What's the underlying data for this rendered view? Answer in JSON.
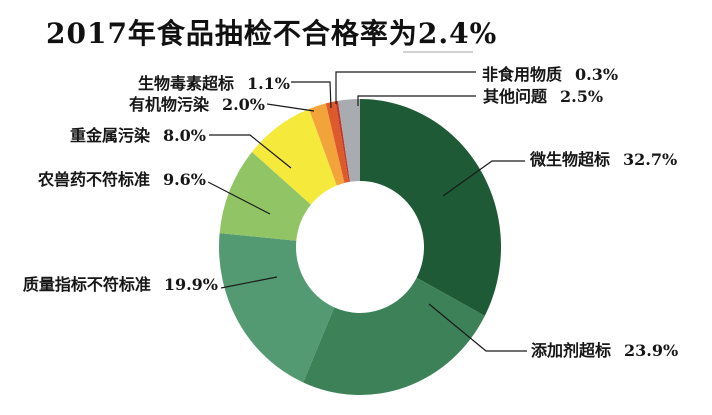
{
  "page": {
    "background": "#ffffff"
  },
  "title": "2017年食品抽检不合格率为2.4%",
  "chart_data": {
    "type": "pie",
    "subtype": "donut",
    "title": "2017年食品抽检不合格率为2.4%",
    "unit": "%",
    "total": 100,
    "start_angle_deg": 0,
    "direction": "clockwise",
    "legend_position": "none",
    "labels_as_callouts": true,
    "slices": [
      {
        "label": "微生物超标",
        "value": 32.7,
        "pct": "32.7%",
        "color": "#1d5a35",
        "side": "right"
      },
      {
        "label": "添加剂超标",
        "value": 23.9,
        "pct": "23.9%",
        "color": "#3d8158",
        "side": "right"
      },
      {
        "label": "质量指标不符标准",
        "value": 19.9,
        "pct": "19.9%",
        "color": "#539a73",
        "side": "left"
      },
      {
        "label": "农兽药不符标准",
        "value": 9.6,
        "pct": "9.6%",
        "color": "#90c464",
        "side": "left"
      },
      {
        "label": "重金属污染",
        "value": 8.0,
        "pct": "8.0%",
        "color": "#f5e93c",
        "side": "left"
      },
      {
        "label": "有机物污染",
        "value": 2.0,
        "pct": "2.0%",
        "color": "#f2a33a",
        "side": "left"
      },
      {
        "label": "生物毒素超标",
        "value": 1.1,
        "pct": "1.1%",
        "color": "#dc5a2c",
        "side": "left"
      },
      {
        "label": "非食用物质",
        "value": 0.3,
        "pct": "0.3%",
        "color": "#c0392b",
        "side": "right"
      },
      {
        "label": "其他问题",
        "value": 2.5,
        "pct": "2.5%",
        "color": "#a8acb0",
        "side": "right"
      }
    ]
  }
}
